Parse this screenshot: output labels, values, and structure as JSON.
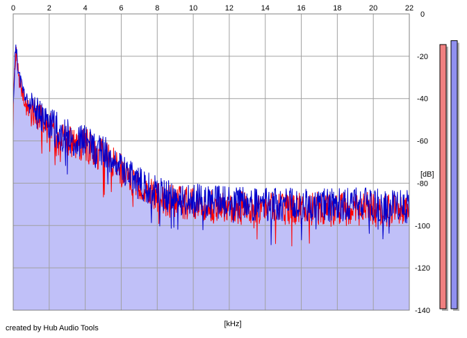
{
  "credit": "created by Hub Audio Tools",
  "colors": {
    "background": "#ffffff",
    "plot_background": "#ffffff",
    "grid": "#a0a0a0",
    "fill": "#c0c0f8",
    "left_channel": "#ff0000",
    "right_channel": "#0000cc",
    "left_meter": "#f08080",
    "right_meter": "#9090f0",
    "meter_shadow": "#b0b0b0"
  },
  "chart_data": {
    "type": "line",
    "title": "",
    "xlabel": "[kHz]",
    "ylabel": "[dB]",
    "xlim": [
      0,
      22
    ],
    "ylim": [
      -140,
      0
    ],
    "x_ticks": [
      "0",
      "2",
      "4",
      "6",
      "8",
      "10",
      "12",
      "14",
      "16",
      "18",
      "20",
      "22"
    ],
    "y_ticks": [
      "0",
      "-20",
      "-40",
      "-60",
      "-80",
      "-100",
      "-120",
      "-140"
    ],
    "grid": true,
    "legend": "none",
    "x": [
      0,
      0.1,
      0.2,
      0.3,
      0.5,
      0.8,
      1.0,
      1.5,
      2.0,
      2.5,
      3.0,
      3.5,
      4.0,
      4.5,
      5.0,
      5.5,
      6.0,
      6.5,
      7.0,
      7.5,
      8.0,
      9.0,
      10.0,
      11.0,
      12.0,
      13.0,
      14.0,
      15.0,
      16.0,
      17.0,
      18.0,
      19.0,
      20.0,
      21.0,
      22.0
    ],
    "series": [
      {
        "values": [
          -44,
          -20,
          -16,
          -28,
          -35,
          -42,
          -45,
          -48,
          -52,
          -54,
          -57,
          -60,
          -60,
          -63,
          -65,
          -68,
          -72,
          -77,
          -80,
          -82,
          -85,
          -87,
          -88,
          -89,
          -89,
          -90,
          -90,
          -90,
          -90,
          -90,
          -90,
          -90,
          -90,
          -91,
          -91
        ]
      },
      {
        "values": [
          -46,
          -22,
          -18,
          -30,
          -37,
          -44,
          -47,
          -50,
          -54,
          -56,
          -59,
          -62,
          -62,
          -65,
          -67,
          -70,
          -74,
          -79,
          -82,
          -84,
          -87,
          -89,
          -90,
          -91,
          -91,
          -92,
          -92,
          -92,
          -92,
          -92,
          -92,
          -92,
          -92,
          -93,
          -93
        ]
      }
    ],
    "level_meters": [
      {
        "channel": "left",
        "level_db": -5
      },
      {
        "channel": "right",
        "level_db": -3
      }
    ]
  }
}
